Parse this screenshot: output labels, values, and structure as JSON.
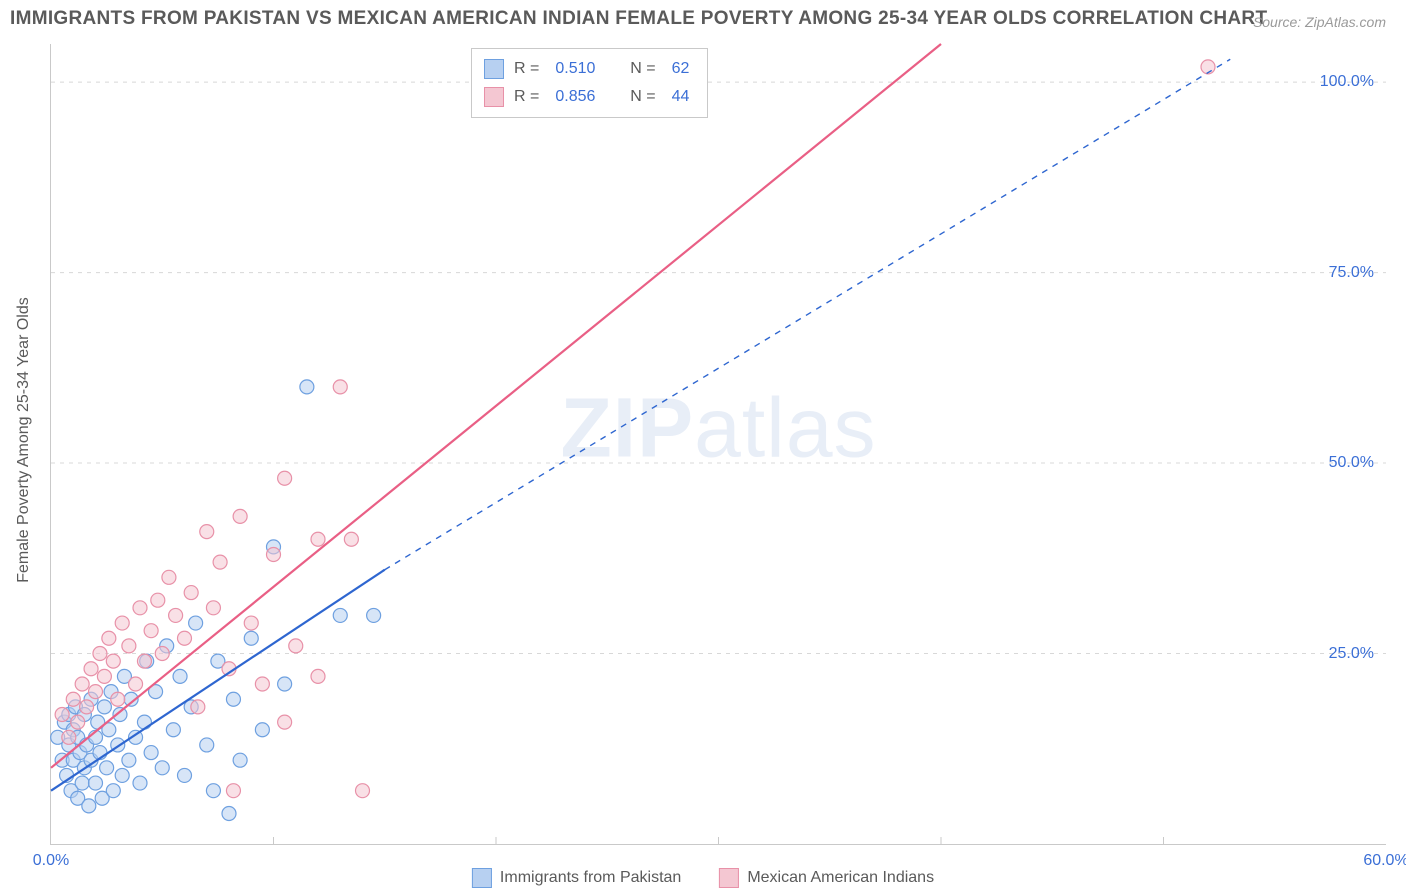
{
  "title": "IMMIGRANTS FROM PAKISTAN VS MEXICAN AMERICAN INDIAN FEMALE POVERTY AMONG 25-34 YEAR OLDS CORRELATION CHART",
  "source": "Source: ZipAtlas.com",
  "watermark_a": "ZIP",
  "watermark_b": "atlas",
  "chart": {
    "type": "scatter",
    "ylabel": "Female Poverty Among 25-34 Year Olds",
    "xlim": [
      0,
      60
    ],
    "ylim": [
      0,
      105
    ],
    "xtick_labels": {
      "0": "0.0%",
      "60": "60.0%"
    },
    "ytick_labels": {
      "25": "25.0%",
      "50": "50.0%",
      "75": "75.0%",
      "100": "100.0%"
    },
    "xtick_minor": [
      10,
      20,
      30,
      40,
      50
    ],
    "background_color": "#ffffff",
    "grid_color": "#d8d8d8",
    "axis_color": "#c9c9c9",
    "label_fontsize": 16,
    "tick_fontsize": 16,
    "tick_color": "#3b6fd6",
    "marker_radius": 7,
    "marker_opacity": 0.55,
    "line_width": 2.2,
    "series": [
      {
        "name": "Immigrants from Pakistan",
        "color_fill": "#b7d0f1",
        "color_stroke": "#6ea0e0",
        "line_color": "#2e66d0",
        "r": "0.510",
        "n": "62",
        "trend": {
          "x1": 0,
          "y1": 7,
          "x2": 15,
          "y2": 36,
          "dash_x1": 15,
          "dash_y1": 36,
          "dash_x2": 53,
          "dash_y2": 103
        },
        "points": [
          [
            0.3,
            14
          ],
          [
            0.5,
            11
          ],
          [
            0.6,
            16
          ],
          [
            0.7,
            9
          ],
          [
            0.8,
            13
          ],
          [
            0.8,
            17
          ],
          [
            0.9,
            7
          ],
          [
            1.0,
            11
          ],
          [
            1.0,
            15
          ],
          [
            1.1,
            18
          ],
          [
            1.2,
            6
          ],
          [
            1.2,
            14
          ],
          [
            1.3,
            12
          ],
          [
            1.4,
            8
          ],
          [
            1.5,
            17
          ],
          [
            1.5,
            10
          ],
          [
            1.6,
            13
          ],
          [
            1.7,
            5
          ],
          [
            1.8,
            11
          ],
          [
            1.8,
            19
          ],
          [
            2.0,
            14
          ],
          [
            2.0,
            8
          ],
          [
            2.1,
            16
          ],
          [
            2.2,
            12
          ],
          [
            2.3,
            6
          ],
          [
            2.4,
            18
          ],
          [
            2.5,
            10
          ],
          [
            2.6,
            15
          ],
          [
            2.7,
            20
          ],
          [
            2.8,
            7
          ],
          [
            3.0,
            13
          ],
          [
            3.1,
            17
          ],
          [
            3.2,
            9
          ],
          [
            3.3,
            22
          ],
          [
            3.5,
            11
          ],
          [
            3.6,
            19
          ],
          [
            3.8,
            14
          ],
          [
            4.0,
            8
          ],
          [
            4.2,
            16
          ],
          [
            4.3,
            24
          ],
          [
            4.5,
            12
          ],
          [
            4.7,
            20
          ],
          [
            5.0,
            10
          ],
          [
            5.2,
            26
          ],
          [
            5.5,
            15
          ],
          [
            5.8,
            22
          ],
          [
            6.0,
            9
          ],
          [
            6.3,
            18
          ],
          [
            6.5,
            29
          ],
          [
            7.0,
            13
          ],
          [
            7.3,
            7
          ],
          [
            7.5,
            24
          ],
          [
            8.0,
            4
          ],
          [
            8.2,
            19
          ],
          [
            8.5,
            11
          ],
          [
            9.0,
            27
          ],
          [
            9.5,
            15
          ],
          [
            10.0,
            39
          ],
          [
            10.5,
            21
          ],
          [
            11.5,
            60
          ],
          [
            13.0,
            30
          ],
          [
            14.5,
            30
          ]
        ]
      },
      {
        "name": "Mexican American Indians",
        "color_fill": "#f4c7d2",
        "color_stroke": "#e891a8",
        "line_color": "#e95f85",
        "r": "0.856",
        "n": "44",
        "trend": {
          "x1": 0,
          "y1": 10,
          "x2": 40,
          "y2": 105
        },
        "points": [
          [
            0.5,
            17
          ],
          [
            0.8,
            14
          ],
          [
            1.0,
            19
          ],
          [
            1.2,
            16
          ],
          [
            1.4,
            21
          ],
          [
            1.6,
            18
          ],
          [
            1.8,
            23
          ],
          [
            2.0,
            20
          ],
          [
            2.2,
            25
          ],
          [
            2.4,
            22
          ],
          [
            2.6,
            27
          ],
          [
            2.8,
            24
          ],
          [
            3.0,
            19
          ],
          [
            3.2,
            29
          ],
          [
            3.5,
            26
          ],
          [
            3.8,
            21
          ],
          [
            4.0,
            31
          ],
          [
            4.2,
            24
          ],
          [
            4.5,
            28
          ],
          [
            4.8,
            32
          ],
          [
            5.0,
            25
          ],
          [
            5.3,
            35
          ],
          [
            5.6,
            30
          ],
          [
            6.0,
            27
          ],
          [
            6.3,
            33
          ],
          [
            6.6,
            18
          ],
          [
            7.0,
            41
          ],
          [
            7.3,
            31
          ],
          [
            7.6,
            37
          ],
          [
            8.0,
            23
          ],
          [
            8.5,
            43
          ],
          [
            9.0,
            29
          ],
          [
            9.5,
            21
          ],
          [
            10.0,
            38
          ],
          [
            10.5,
            48
          ],
          [
            11.0,
            26
          ],
          [
            12.0,
            40
          ],
          [
            12.0,
            22
          ],
          [
            13.0,
            60
          ],
          [
            13.5,
            40
          ],
          [
            14.0,
            7
          ],
          [
            10.5,
            16
          ],
          [
            8.2,
            7
          ],
          [
            52.0,
            102
          ]
        ]
      }
    ]
  },
  "top_legend": {
    "r_label": "R =",
    "n_label": "N ="
  },
  "bottom_legend": {
    "label_a": "Immigrants from Pakistan",
    "label_b": "Mexican American Indians"
  }
}
